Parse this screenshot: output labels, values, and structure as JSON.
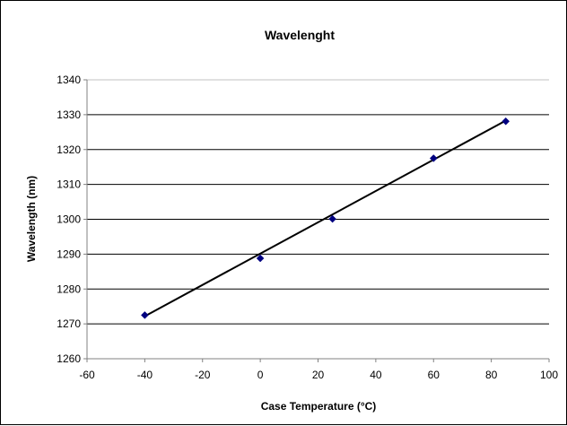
{
  "chart_data": {
    "type": "scatter",
    "title": "Wavelenght",
    "xlabel": "Case Temperature (°C)",
    "ylabel": "Wavelength (nm)",
    "xlim": [
      -60,
      100
    ],
    "ylim": [
      1260,
      1340
    ],
    "x_ticks": [
      -60,
      -40,
      -20,
      0,
      20,
      40,
      60,
      80,
      100
    ],
    "y_ticks": [
      1260,
      1270,
      1280,
      1290,
      1300,
      1310,
      1320,
      1330,
      1340
    ],
    "grid": "horizontal",
    "legend": "none",
    "series": [
      {
        "points": [
          {
            "x": -40,
            "y": 1272.5
          },
          {
            "x": 0,
            "y": 1288.8
          },
          {
            "x": 25,
            "y": 1300.1
          },
          {
            "x": 60,
            "y": 1317.5
          },
          {
            "x": 85,
            "y": 1328.1
          }
        ]
      }
    ],
    "trendline": {
      "type": "linear",
      "x_start": -40,
      "y_start": 1272.2,
      "x_end": 85,
      "y_end": 1328.3
    },
    "colors": {
      "marker": "#000080",
      "line": "#000000",
      "grid": "#000000",
      "axis": "#808080"
    }
  }
}
